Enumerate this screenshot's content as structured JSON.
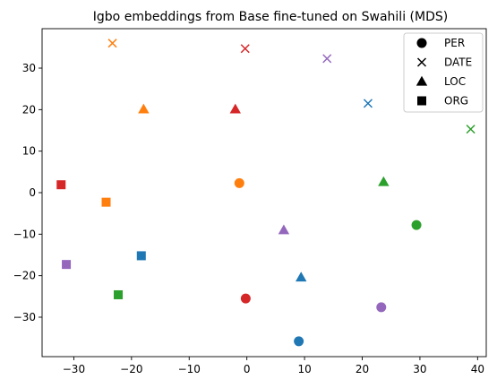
{
  "chart_data": {
    "type": "scatter",
    "title": "Igbo embeddings from Base fine-tuned on Swahili (MDS)",
    "xlabel": "",
    "ylabel": "",
    "xlim": [
      -35.5,
      41.5
    ],
    "ylim": [
      -39.5,
      39.5
    ],
    "xticks": [
      -30,
      -20,
      -10,
      0,
      10,
      20,
      30,
      40
    ],
    "yticks": [
      -30,
      -20,
      -10,
      0,
      10,
      20,
      30
    ],
    "grid": false,
    "legend_position": "top-right",
    "legend": [
      {
        "label": "PER",
        "marker": "circle"
      },
      {
        "label": "DATE",
        "marker": "x"
      },
      {
        "label": "LOC",
        "marker": "triangle"
      },
      {
        "label": "ORG",
        "marker": "square"
      }
    ],
    "points": [
      {
        "x": 9.0,
        "y": -35.8,
        "marker": "circle",
        "color": "#1f77b4"
      },
      {
        "x": -1.3,
        "y": 2.3,
        "marker": "circle",
        "color": "#ff7f0e"
      },
      {
        "x": 29.4,
        "y": -7.8,
        "marker": "circle",
        "color": "#2ca02c"
      },
      {
        "x": -0.2,
        "y": -25.5,
        "marker": "circle",
        "color": "#d62728"
      },
      {
        "x": 23.3,
        "y": -27.6,
        "marker": "circle",
        "color": "#9467bd"
      },
      {
        "x": 21.0,
        "y": 21.5,
        "marker": "x",
        "color": "#1f77b4"
      },
      {
        "x": -23.3,
        "y": 36.0,
        "marker": "x",
        "color": "#ff7f0e"
      },
      {
        "x": 38.8,
        "y": 15.3,
        "marker": "x",
        "color": "#2ca02c"
      },
      {
        "x": -0.3,
        "y": 34.7,
        "marker": "x",
        "color": "#d62728"
      },
      {
        "x": 13.9,
        "y": 32.3,
        "marker": "x",
        "color": "#9467bd"
      },
      {
        "x": 9.4,
        "y": -20.4,
        "marker": "triangle",
        "color": "#1f77b4"
      },
      {
        "x": -17.9,
        "y": 20.1,
        "marker": "triangle",
        "color": "#ff7f0e"
      },
      {
        "x": 23.7,
        "y": 2.6,
        "marker": "triangle",
        "color": "#2ca02c"
      },
      {
        "x": -2.0,
        "y": 20.1,
        "marker": "triangle",
        "color": "#d62728"
      },
      {
        "x": 6.4,
        "y": -9.0,
        "marker": "triangle",
        "color": "#9467bd"
      },
      {
        "x": -18.3,
        "y": -15.2,
        "marker": "square",
        "color": "#1f77b4"
      },
      {
        "x": -24.4,
        "y": -2.3,
        "marker": "square",
        "color": "#ff7f0e"
      },
      {
        "x": -22.3,
        "y": -24.6,
        "marker": "square",
        "color": "#2ca02c"
      },
      {
        "x": -32.2,
        "y": 1.9,
        "marker": "square",
        "color": "#d62728"
      },
      {
        "x": -31.3,
        "y": -17.3,
        "marker": "square",
        "color": "#9467bd"
      }
    ]
  }
}
